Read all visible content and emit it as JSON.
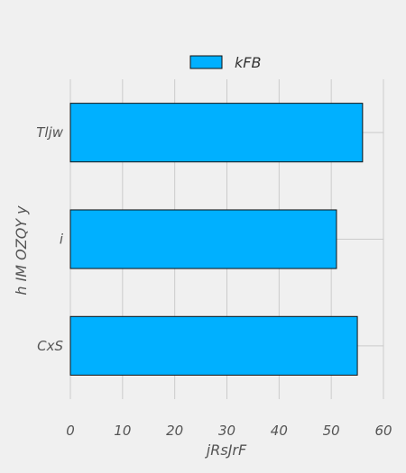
{
  "chart_data": {
    "type": "bar",
    "orientation": "horizontal",
    "categories": [
      "Tljw",
      "i",
      "CxS"
    ],
    "series": [
      {
        "name": "kFB",
        "values": [
          56,
          51,
          55
        ]
      }
    ],
    "xlabel": "jRsJrF",
    "ylabel": "h IM OZQY  y",
    "xlim": [
      0,
      60
    ],
    "xticks": [
      "0",
      "10",
      "20",
      "30",
      "40",
      "50",
      "60"
    ],
    "grid": true,
    "legend": "top-center",
    "colors": {
      "bar": "#00b0ff",
      "edge": "#111111",
      "grid": "#cbcbcb",
      "background": "#f0f0f0"
    }
  }
}
